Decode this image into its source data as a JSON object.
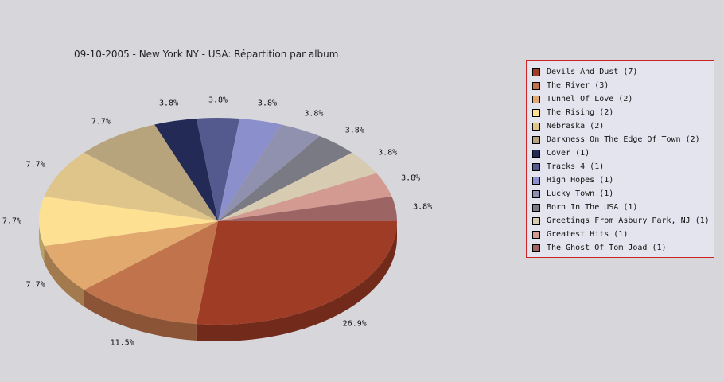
{
  "chart_data": {
    "type": "pie",
    "title": "09-10-2005 - New York NY - USA:  Répartition par album",
    "legend_position": "right",
    "slices": [
      {
        "label": "Devils And Dust (7)",
        "value": 7,
        "percent_label": "26.9%",
        "color": "#9e3c25"
      },
      {
        "label": "The River (3)",
        "value": 3,
        "percent_label": "11.5%",
        "color": "#c1744b"
      },
      {
        "label": "Tunnel Of Love (2)",
        "value": 2,
        "percent_label": "7.7%",
        "color": "#e1a96d"
      },
      {
        "label": "The Rising (2)",
        "value": 2,
        "percent_label": "7.7%",
        "color": "#fde092"
      },
      {
        "label": "Nebraska (2)",
        "value": 2,
        "percent_label": "7.7%",
        "color": "#dfc58a"
      },
      {
        "label": "Darkness On The Edge Of Town (2)",
        "value": 2,
        "percent_label": "7.7%",
        "color": "#b8a47c"
      },
      {
        "label": "Cover (1)",
        "value": 1,
        "percent_label": "3.8%",
        "color": "#222a55"
      },
      {
        "label": "Tracks 4 (1)",
        "value": 1,
        "percent_label": "3.8%",
        "color": "#545a8e"
      },
      {
        "label": "High Hopes (1)",
        "value": 1,
        "percent_label": "3.8%",
        "color": "#8b8fcb"
      },
      {
        "label": "Lucky Town (1)",
        "value": 1,
        "percent_label": "3.8%",
        "color": "#9091ae"
      },
      {
        "label": "Born In The USA (1)",
        "value": 1,
        "percent_label": "3.8%",
        "color": "#7a7a84"
      },
      {
        "label": "Greetings From Asbury Park, NJ (1)",
        "value": 1,
        "percent_label": "3.8%",
        "color": "#d7cbb2"
      },
      {
        "label": "Greatest Hits (1)",
        "value": 1,
        "percent_label": "3.8%",
        "color": "#d39a92"
      },
      {
        "label": "The Ghost Of Tom Joad (1)",
        "value": 1,
        "percent_label": "3.8%",
        "color": "#9d6464"
      }
    ]
  }
}
